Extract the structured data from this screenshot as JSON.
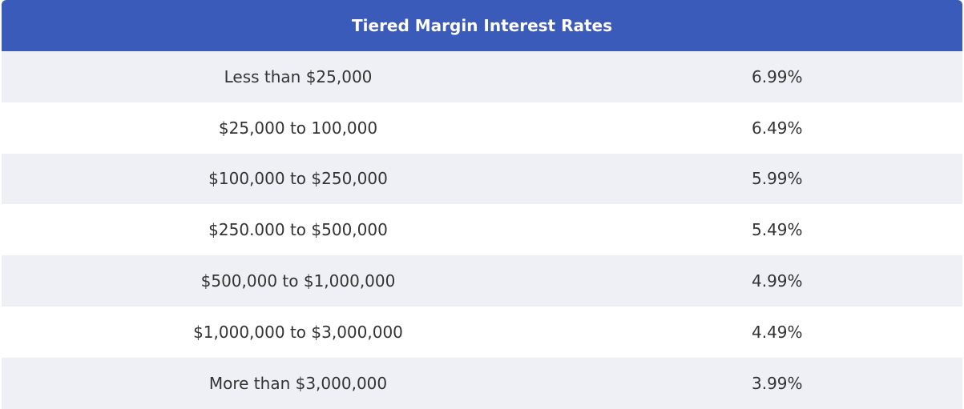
{
  "table": {
    "title": "Tiered Margin Interest Rates",
    "rows": [
      {
        "range": "Less than $25,000",
        "rate": "6.99%"
      },
      {
        "range": "$25,000 to 100,000",
        "rate": "6.49%"
      },
      {
        "range": "$100,000 to $250,000",
        "rate": "5.99%"
      },
      {
        "range": "$250.000 to $500,000",
        "rate": "5.49%"
      },
      {
        "range": "$500,000 to $1,000,000",
        "rate": "4.99%"
      },
      {
        "range": "$1,000,000 to $3,000,000",
        "rate": "4.49%"
      },
      {
        "range": "More than $3,000,000",
        "rate": "3.99%"
      }
    ]
  },
  "colors": {
    "header_bg": "#3a5bb9",
    "header_text": "#ffffff",
    "row_alt_bg": "#eef0f6",
    "row_bg": "#ffffff",
    "body_text": "#333333"
  }
}
